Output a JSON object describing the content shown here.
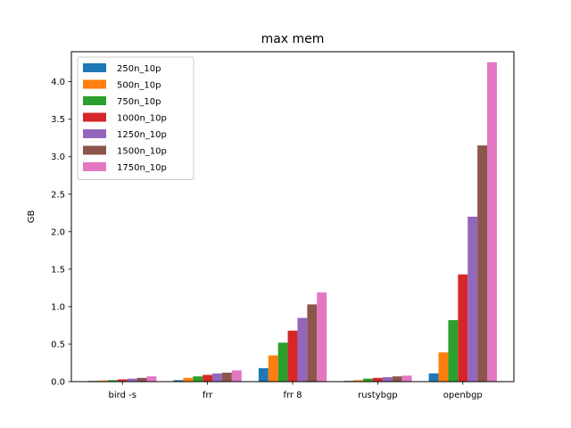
{
  "chart_data": {
    "type": "bar",
    "title": "max mem",
    "xlabel": "",
    "ylabel": "GB",
    "ylim": [
      0,
      4.4
    ],
    "yticks": [
      0.0,
      0.5,
      1.0,
      1.5,
      2.0,
      2.5,
      3.0,
      3.5,
      4.0
    ],
    "ytick_labels": [
      "0.0",
      "0.5",
      "1.0",
      "1.5",
      "2.0",
      "2.5",
      "3.0",
      "3.5",
      "4.0"
    ],
    "categories": [
      "bird -s",
      "frr",
      "frr 8",
      "rustybgp",
      "openbgp"
    ],
    "legend_position": "top-left",
    "grid": false,
    "series": [
      {
        "name": "250n_10p",
        "color": "#1f77b4",
        "values": [
          0.01,
          0.02,
          0.18,
          0.01,
          0.11
        ]
      },
      {
        "name": "500n_10p",
        "color": "#ff7f0e",
        "values": [
          0.015,
          0.05,
          0.35,
          0.02,
          0.39
        ]
      },
      {
        "name": "750n_10p",
        "color": "#2ca02c",
        "values": [
          0.02,
          0.07,
          0.52,
          0.04,
          0.82
        ]
      },
      {
        "name": "1000n_10p",
        "color": "#d62728",
        "values": [
          0.03,
          0.09,
          0.68,
          0.05,
          1.43
        ]
      },
      {
        "name": "1250n_10p",
        "color": "#9467bd",
        "values": [
          0.04,
          0.11,
          0.85,
          0.06,
          2.2
        ]
      },
      {
        "name": "1500n_10p",
        "color": "#8c564b",
        "values": [
          0.05,
          0.12,
          1.03,
          0.07,
          3.15
        ]
      },
      {
        "name": "1750n_10p",
        "color": "#e377c2",
        "values": [
          0.07,
          0.15,
          1.19,
          0.08,
          4.26
        ]
      }
    ]
  }
}
